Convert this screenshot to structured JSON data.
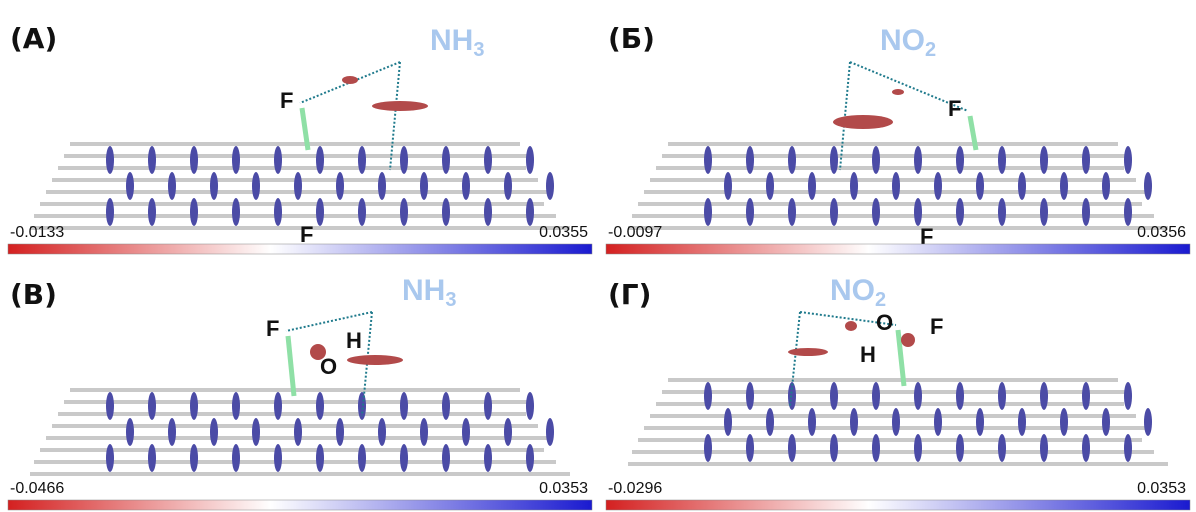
{
  "panels": [
    {
      "label": "(A)",
      "molecule": {
        "base": "NH",
        "sub": "3"
      },
      "atoms": [
        "F",
        "F"
      ],
      "scale_min": "-0.0133",
      "scale_max": "0.0355"
    },
    {
      "label": "(Б)",
      "molecule": {
        "base": "NO",
        "sub": "2"
      },
      "atoms": [
        "F",
        "F"
      ],
      "scale_min": "-0.0097",
      "scale_max": "0.0356"
    },
    {
      "label": "(В)",
      "molecule": {
        "base": "NH",
        "sub": "3"
      },
      "atoms": [
        "F",
        "H",
        "O"
      ],
      "scale_min": "-0.0466",
      "scale_max": "0.0353"
    },
    {
      "label": "(Г)",
      "molecule": {
        "base": "NO",
        "sub": "2"
      },
      "atoms": [
        "O",
        "H",
        "F"
      ],
      "scale_min": "-0.0296",
      "scale_max": "0.0353"
    }
  ]
}
